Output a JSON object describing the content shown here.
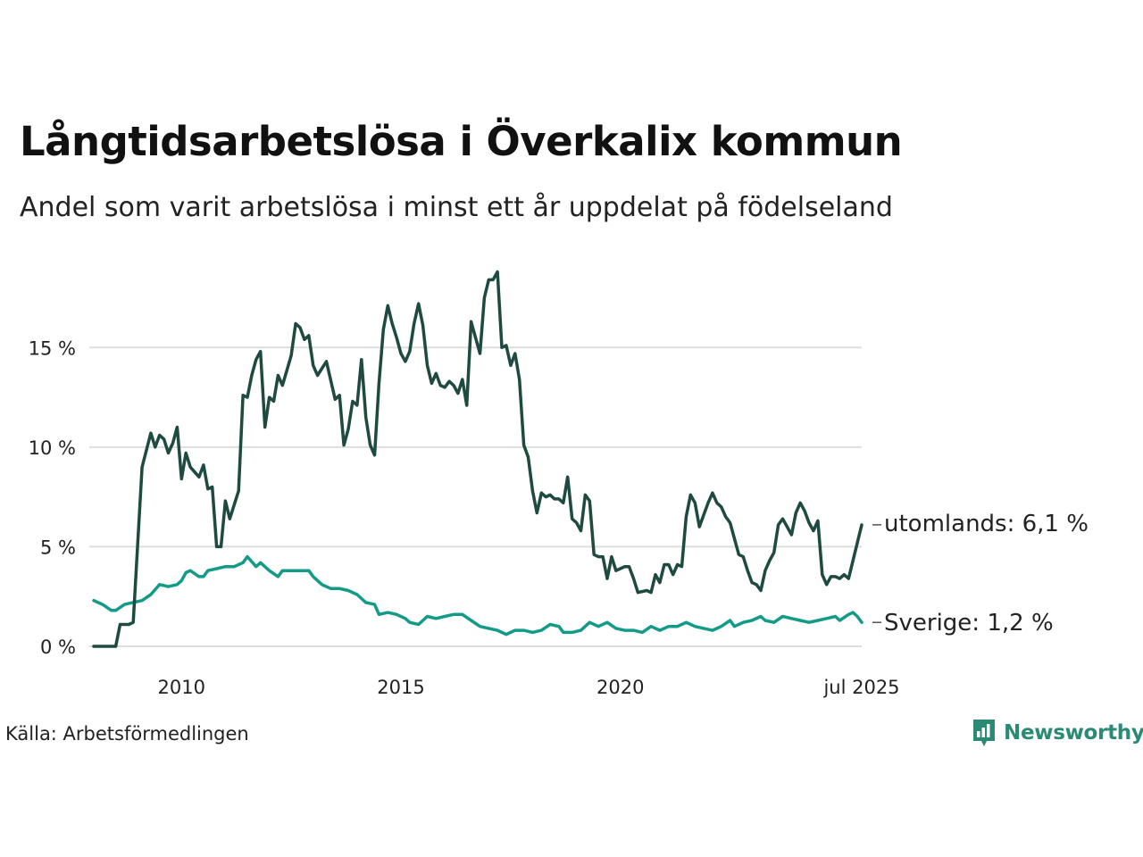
{
  "title": "Långtidsarbetslösa i Överkalix kommun",
  "subtitle": "Andel som varit arbetslösa i minst ett år uppdelat på födelseland",
  "source": "Källa: Arbetsförmedlingen",
  "brand": {
    "name": "Newsworthy",
    "logo_icon": "bar-chart-speech-bubble-icon"
  },
  "colors": {
    "utomlands": "#1f4a40",
    "sverige": "#139b87",
    "grid": "#dddddd",
    "brand": "#2a8a74"
  },
  "chart_data": {
    "type": "line",
    "title": "Långtidsarbetslösa i Överkalix kommun",
    "subtitle": "Andel som varit arbetslösa i minst ett år uppdelat på födelseland",
    "xlabel": "",
    "ylabel": "",
    "x_range": [
      2008.0,
      2025.5
    ],
    "ylim": [
      0,
      19
    ],
    "y_ticks": [
      0,
      5,
      10,
      15
    ],
    "y_tick_labels": [
      "0 %",
      "5 %",
      "10 %",
      "15 %"
    ],
    "x_ticks": [
      2010,
      2015,
      2020,
      2025.5
    ],
    "x_tick_labels": [
      "2010",
      "2015",
      "2020",
      "jul 2025"
    ],
    "grid": true,
    "legend": "end-of-line labels",
    "series": [
      {
        "name": "utomlands",
        "end_label": "utomlands: 6,1 %",
        "color": "#1f4a40",
        "points": [
          [
            2008.0,
            0
          ],
          [
            2008.5,
            0
          ],
          [
            2008.6,
            1.1
          ],
          [
            2008.8,
            1.1
          ],
          [
            2008.9,
            1.2
          ],
          [
            2009.1,
            9.0
          ],
          [
            2009.3,
            10.7
          ],
          [
            2009.4,
            10.0
          ],
          [
            2009.5,
            10.6
          ],
          [
            2009.6,
            10.4
          ],
          [
            2009.7,
            9.7
          ],
          [
            2009.8,
            10.2
          ],
          [
            2009.9,
            11.0
          ],
          [
            2010.0,
            8.4
          ],
          [
            2010.1,
            9.7
          ],
          [
            2010.2,
            9.0
          ],
          [
            2010.4,
            8.5
          ],
          [
            2010.5,
            9.1
          ],
          [
            2010.6,
            7.9
          ],
          [
            2010.7,
            8.0
          ],
          [
            2010.8,
            5.0
          ],
          [
            2010.9,
            5.0
          ],
          [
            2011.0,
            7.3
          ],
          [
            2011.1,
            6.4
          ],
          [
            2011.3,
            7.8
          ],
          [
            2011.4,
            12.6
          ],
          [
            2011.5,
            12.5
          ],
          [
            2011.6,
            13.6
          ],
          [
            2011.7,
            14.4
          ],
          [
            2011.8,
            14.8
          ],
          [
            2011.9,
            11.0
          ],
          [
            2012.0,
            12.5
          ],
          [
            2012.1,
            12.3
          ],
          [
            2012.2,
            13.6
          ],
          [
            2012.3,
            13.1
          ],
          [
            2012.5,
            14.6
          ],
          [
            2012.6,
            16.2
          ],
          [
            2012.7,
            16.0
          ],
          [
            2012.8,
            15.4
          ],
          [
            2012.9,
            15.6
          ],
          [
            2013.0,
            14.1
          ],
          [
            2013.1,
            13.6
          ],
          [
            2013.3,
            14.3
          ],
          [
            2013.5,
            12.4
          ],
          [
            2013.6,
            12.6
          ],
          [
            2013.7,
            10.1
          ],
          [
            2013.8,
            10.9
          ],
          [
            2013.9,
            12.3
          ],
          [
            2014.0,
            12.1
          ],
          [
            2014.1,
            14.4
          ],
          [
            2014.2,
            11.5
          ],
          [
            2014.3,
            10.1
          ],
          [
            2014.4,
            9.6
          ],
          [
            2014.5,
            13.2
          ],
          [
            2014.6,
            15.9
          ],
          [
            2014.7,
            17.1
          ],
          [
            2014.8,
            16.2
          ],
          [
            2014.9,
            15.5
          ],
          [
            2015.0,
            14.7
          ],
          [
            2015.1,
            14.3
          ],
          [
            2015.2,
            14.8
          ],
          [
            2015.3,
            16.2
          ],
          [
            2015.4,
            17.2
          ],
          [
            2015.5,
            16.1
          ],
          [
            2015.6,
            14.1
          ],
          [
            2015.7,
            13.2
          ],
          [
            2015.8,
            13.7
          ],
          [
            2015.9,
            13.1
          ],
          [
            2016.0,
            13.0
          ],
          [
            2016.1,
            13.3
          ],
          [
            2016.2,
            13.1
          ],
          [
            2016.3,
            12.7
          ],
          [
            2016.4,
            13.4
          ],
          [
            2016.5,
            12.1
          ],
          [
            2016.6,
            16.3
          ],
          [
            2016.7,
            15.5
          ],
          [
            2016.8,
            14.7
          ],
          [
            2016.9,
            17.5
          ],
          [
            2017.0,
            18.4
          ],
          [
            2017.1,
            18.4
          ],
          [
            2017.2,
            18.8
          ],
          [
            2017.3,
            15.0
          ],
          [
            2017.4,
            15.1
          ],
          [
            2017.5,
            14.1
          ],
          [
            2017.6,
            14.7
          ],
          [
            2017.7,
            13.4
          ],
          [
            2017.8,
            10.1
          ],
          [
            2017.9,
            9.5
          ],
          [
            2018.0,
            7.8
          ],
          [
            2018.1,
            6.7
          ],
          [
            2018.2,
            7.7
          ],
          [
            2018.3,
            7.5
          ],
          [
            2018.4,
            7.6
          ],
          [
            2018.5,
            7.4
          ],
          [
            2018.6,
            7.4
          ],
          [
            2018.7,
            7.2
          ],
          [
            2018.8,
            8.5
          ],
          [
            2018.9,
            6.4
          ],
          [
            2019.0,
            6.2
          ],
          [
            2019.1,
            5.8
          ],
          [
            2019.2,
            7.6
          ],
          [
            2019.3,
            7.3
          ],
          [
            2019.4,
            4.6
          ],
          [
            2019.5,
            4.5
          ],
          [
            2019.6,
            4.5
          ],
          [
            2019.7,
            3.4
          ],
          [
            2019.8,
            4.5
          ],
          [
            2019.9,
            3.8
          ],
          [
            2020.0,
            3.9
          ],
          [
            2020.1,
            4.0
          ],
          [
            2020.2,
            4.0
          ],
          [
            2020.3,
            3.4
          ],
          [
            2020.4,
            2.7
          ],
          [
            2020.6,
            2.8
          ],
          [
            2020.7,
            2.7
          ],
          [
            2020.8,
            3.6
          ],
          [
            2020.9,
            3.2
          ],
          [
            2021.0,
            4.1
          ],
          [
            2021.1,
            4.1
          ],
          [
            2021.2,
            3.6
          ],
          [
            2021.3,
            4.1
          ],
          [
            2021.4,
            4.0
          ],
          [
            2021.5,
            6.5
          ],
          [
            2021.6,
            7.6
          ],
          [
            2021.7,
            7.2
          ],
          [
            2021.8,
            6.0
          ],
          [
            2021.9,
            6.6
          ],
          [
            2022.0,
            7.2
          ],
          [
            2022.1,
            7.7
          ],
          [
            2022.2,
            7.2
          ],
          [
            2022.3,
            7.0
          ],
          [
            2022.4,
            6.5
          ],
          [
            2022.5,
            6.2
          ],
          [
            2022.6,
            5.4
          ],
          [
            2022.7,
            4.6
          ],
          [
            2022.8,
            4.5
          ],
          [
            2022.9,
            3.8
          ],
          [
            2023.0,
            3.2
          ],
          [
            2023.1,
            3.1
          ],
          [
            2023.2,
            2.8
          ],
          [
            2023.3,
            3.8
          ],
          [
            2023.4,
            4.3
          ],
          [
            2023.5,
            4.7
          ],
          [
            2023.6,
            6.1
          ],
          [
            2023.7,
            6.4
          ],
          [
            2023.8,
            6.0
          ],
          [
            2023.9,
            5.6
          ],
          [
            2024.0,
            6.7
          ],
          [
            2024.1,
            7.2
          ],
          [
            2024.2,
            6.8
          ],
          [
            2024.3,
            6.2
          ],
          [
            2024.4,
            5.8
          ],
          [
            2024.5,
            6.3
          ],
          [
            2024.6,
            3.6
          ],
          [
            2024.7,
            3.1
          ],
          [
            2024.8,
            3.5
          ],
          [
            2024.9,
            3.5
          ],
          [
            2025.0,
            3.4
          ],
          [
            2025.1,
            3.6
          ],
          [
            2025.2,
            3.4
          ],
          [
            2025.5,
            6.1
          ]
        ]
      },
      {
        "name": "Sverige",
        "end_label": "Sverige: 1,2 %",
        "color": "#139b87",
        "points": [
          [
            2008.0,
            2.3
          ],
          [
            2008.2,
            2.1
          ],
          [
            2008.4,
            1.8
          ],
          [
            2008.5,
            1.8
          ],
          [
            2008.7,
            2.1
          ],
          [
            2008.9,
            2.2
          ],
          [
            2009.1,
            2.3
          ],
          [
            2009.3,
            2.6
          ],
          [
            2009.5,
            3.1
          ],
          [
            2009.7,
            3.0
          ],
          [
            2009.9,
            3.1
          ],
          [
            2010.0,
            3.3
          ],
          [
            2010.1,
            3.7
          ],
          [
            2010.2,
            3.8
          ],
          [
            2010.4,
            3.5
          ],
          [
            2010.5,
            3.5
          ],
          [
            2010.6,
            3.8
          ],
          [
            2010.8,
            3.9
          ],
          [
            2011.0,
            4.0
          ],
          [
            2011.2,
            4.0
          ],
          [
            2011.4,
            4.2
          ],
          [
            2011.5,
            4.5
          ],
          [
            2011.7,
            4.0
          ],
          [
            2011.8,
            4.2
          ],
          [
            2012.0,
            3.8
          ],
          [
            2012.2,
            3.5
          ],
          [
            2012.3,
            3.8
          ],
          [
            2012.5,
            3.8
          ],
          [
            2012.7,
            3.8
          ],
          [
            2012.9,
            3.8
          ],
          [
            2013.0,
            3.5
          ],
          [
            2013.2,
            3.1
          ],
          [
            2013.4,
            2.9
          ],
          [
            2013.6,
            2.9
          ],
          [
            2013.8,
            2.8
          ],
          [
            2014.0,
            2.6
          ],
          [
            2014.2,
            2.2
          ],
          [
            2014.4,
            2.1
          ],
          [
            2014.5,
            1.6
          ],
          [
            2014.7,
            1.7
          ],
          [
            2014.9,
            1.6
          ],
          [
            2015.1,
            1.4
          ],
          [
            2015.2,
            1.2
          ],
          [
            2015.4,
            1.1
          ],
          [
            2015.6,
            1.5
          ],
          [
            2015.8,
            1.4
          ],
          [
            2016.0,
            1.5
          ],
          [
            2016.2,
            1.6
          ],
          [
            2016.4,
            1.6
          ],
          [
            2016.6,
            1.3
          ],
          [
            2016.8,
            1.0
          ],
          [
            2017.0,
            0.9
          ],
          [
            2017.2,
            0.8
          ],
          [
            2017.4,
            0.6
          ],
          [
            2017.6,
            0.8
          ],
          [
            2017.8,
            0.8
          ],
          [
            2018.0,
            0.7
          ],
          [
            2018.2,
            0.8
          ],
          [
            2018.4,
            1.1
          ],
          [
            2018.6,
            1.0
          ],
          [
            2018.7,
            0.7
          ],
          [
            2018.9,
            0.7
          ],
          [
            2019.1,
            0.8
          ],
          [
            2019.3,
            1.2
          ],
          [
            2019.5,
            1.0
          ],
          [
            2019.7,
            1.2
          ],
          [
            2019.9,
            0.9
          ],
          [
            2020.1,
            0.8
          ],
          [
            2020.3,
            0.8
          ],
          [
            2020.5,
            0.7
          ],
          [
            2020.7,
            1.0
          ],
          [
            2020.9,
            0.8
          ],
          [
            2021.1,
            1.0
          ],
          [
            2021.3,
            1.0
          ],
          [
            2021.5,
            1.2
          ],
          [
            2021.7,
            1.0
          ],
          [
            2021.9,
            0.9
          ],
          [
            2022.1,
            0.8
          ],
          [
            2022.3,
            1.0
          ],
          [
            2022.5,
            1.3
          ],
          [
            2022.6,
            1.0
          ],
          [
            2022.8,
            1.2
          ],
          [
            2023.0,
            1.3
          ],
          [
            2023.2,
            1.5
          ],
          [
            2023.3,
            1.3
          ],
          [
            2023.5,
            1.2
          ],
          [
            2023.7,
            1.5
          ],
          [
            2023.9,
            1.4
          ],
          [
            2024.1,
            1.3
          ],
          [
            2024.3,
            1.2
          ],
          [
            2024.5,
            1.3
          ],
          [
            2024.7,
            1.4
          ],
          [
            2024.9,
            1.5
          ],
          [
            2025.0,
            1.3
          ],
          [
            2025.2,
            1.6
          ],
          [
            2025.3,
            1.7
          ],
          [
            2025.4,
            1.5
          ],
          [
            2025.5,
            1.2
          ]
        ]
      }
    ]
  }
}
